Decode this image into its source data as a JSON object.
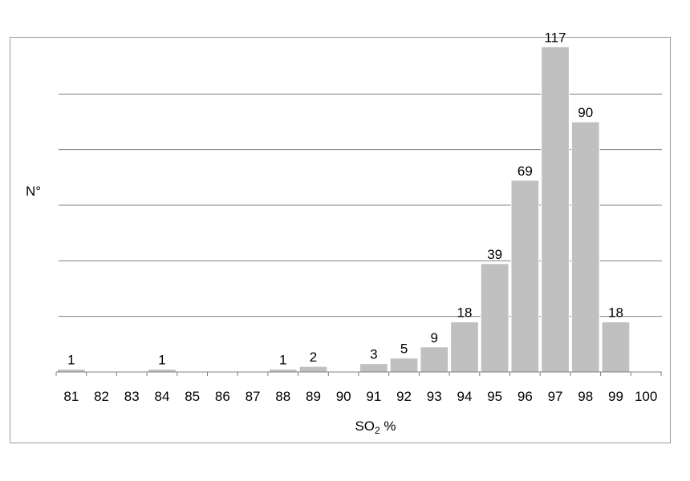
{
  "chart_data": {
    "type": "bar",
    "categories": [
      "81",
      "82",
      "83",
      "84",
      "85",
      "86",
      "87",
      "88",
      "89",
      "90",
      "91",
      "92",
      "93",
      "94",
      "95",
      "96",
      "97",
      "98",
      "99"
    ],
    "values": [
      1,
      0,
      0,
      1,
      0,
      0,
      0,
      1,
      2,
      0,
      3,
      5,
      9,
      18,
      39,
      69,
      117,
      90,
      18
    ],
    "data_labels": [
      "1",
      "",
      "",
      "1",
      "",
      "",
      "",
      "1",
      "2",
      "",
      "3",
      "5",
      "9",
      "18",
      "39",
      "69",
      "117",
      "90",
      "18"
    ],
    "x_tick_labels": [
      "81",
      "82",
      "83",
      "84",
      "85",
      "86",
      "87",
      "88",
      "89",
      "90",
      "91",
      "92",
      "93",
      "94",
      "95",
      "96",
      "97",
      "98",
      "99",
      "100"
    ],
    "ylabel": "N°",
    "xlabel_main": "SO",
    "xlabel_sub": "2",
    "xlabel_suffix": " %",
    "ylim": [
      0,
      120
    ],
    "y_grid_step": 20,
    "grid": "horizontal",
    "bar_color": "#c0c0c0",
    "grid_color": "#808080",
    "axis_color": "#808080"
  }
}
